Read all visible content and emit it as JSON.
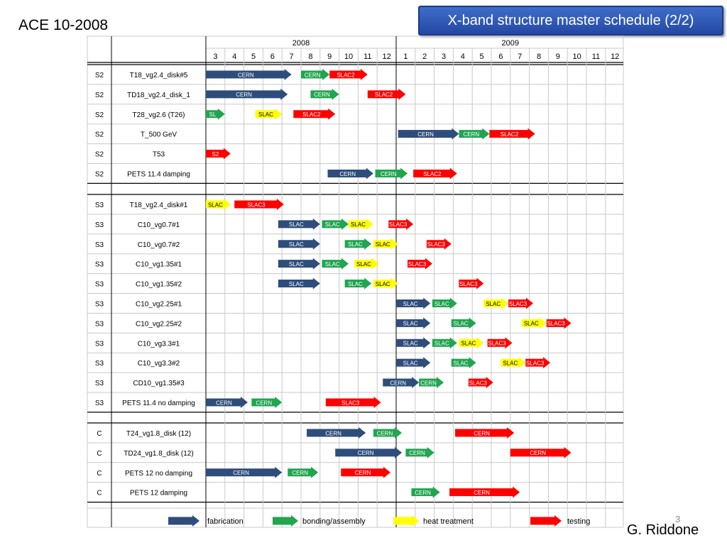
{
  "header": {
    "event": "ACE 10-2008",
    "title": "X-band structure master schedule (2/2)",
    "author": "G. Riddone",
    "page_number": "3"
  },
  "colors": {
    "fabrication": "#2e4d7b",
    "bonding": "#21a550",
    "heat": "#ffff00",
    "testing": "#ff0000"
  },
  "years": [
    {
      "label": "2008",
      "months": [
        "3",
        "4",
        "5",
        "6",
        "7",
        "8",
        "9",
        "10",
        "11",
        "12"
      ]
    },
    {
      "label": "2009",
      "months": [
        "1",
        "2",
        "3",
        "4",
        "5",
        "6",
        "7",
        "8",
        "9",
        "10",
        "11",
        "12"
      ]
    }
  ],
  "rows": [
    {
      "group": "S2",
      "name": "T18_vg2.4_disk#5",
      "bars": [
        {
          "type": "fabrication",
          "label": "CERN",
          "start": 0,
          "end": 4.5
        },
        {
          "type": "bonding",
          "label": "CERN",
          "start": 5,
          "end": 6.5
        },
        {
          "type": "testing",
          "label": "SLAC2",
          "start": 6.5,
          "end": 8.5
        }
      ]
    },
    {
      "group": "S2",
      "name": "TD18_vg2.4_disk_1",
      "bars": [
        {
          "type": "fabrication",
          "label": "CERN",
          "start": 0,
          "end": 4.3
        },
        {
          "type": "bonding",
          "label": "CERN",
          "start": 5.5,
          "end": 7
        },
        {
          "type": "testing",
          "label": "SLAC2",
          "start": 8.5,
          "end": 10.5
        }
      ]
    },
    {
      "group": "S2",
      "name": "T28_vg2.6 (T26)",
      "bars": [
        {
          "type": "bonding",
          "label": "SL",
          "start": 0,
          "end": 1
        },
        {
          "type": "heat",
          "label": "SLAC",
          "start": 2.6,
          "end": 4
        },
        {
          "type": "testing",
          "label": "SLAC2",
          "start": 4.6,
          "end": 6.8
        }
      ]
    },
    {
      "group": "S2",
      "name": "T_500 GeV",
      "bars": [
        {
          "type": "fabrication",
          "label": "CERN",
          "start": 10.1,
          "end": 13.3
        },
        {
          "type": "bonding",
          "label": "CERN",
          "start": 13.3,
          "end": 14.9
        },
        {
          "type": "testing",
          "label": "SLAC2",
          "start": 14.9,
          "end": 17.3
        }
      ]
    },
    {
      "group": "S2",
      "name": "T53",
      "bars": [
        {
          "type": "testing",
          "label": "S2",
          "start": 0,
          "end": 1.3
        }
      ]
    },
    {
      "group": "S2",
      "name": "PETS 11.4 damping",
      "bars": [
        {
          "type": "fabrication",
          "label": "CERN",
          "start": 6.4,
          "end": 8.8
        },
        {
          "type": "bonding",
          "label": "CERN",
          "start": 8.9,
          "end": 10.6
        },
        {
          "type": "testing",
          "label": "SLAC2",
          "start": 10.9,
          "end": 13.2
        }
      ]
    },
    {
      "group": "S3",
      "name": "T18_vg2.4_disk#1",
      "bars": [
        {
          "type": "heat",
          "label": "SLAC",
          "start": 0,
          "end": 1.3
        },
        {
          "type": "testing",
          "label": "SLAC3",
          "start": 1.5,
          "end": 4.1
        }
      ]
    },
    {
      "group": "S3",
      "name": "C10_vg0.7#1",
      "bars": [
        {
          "type": "fabrication",
          "label": "SLAC",
          "start": 3.8,
          "end": 6
        },
        {
          "type": "bonding",
          "label": "SLAC",
          "start": 6.1,
          "end": 7.5
        },
        {
          "type": "heat",
          "label": "SLAC",
          "start": 7.5,
          "end": 8.8
        },
        {
          "type": "testing",
          "label": "SLAC3",
          "start": 9.6,
          "end": 10.9
        }
      ]
    },
    {
      "group": "S3",
      "name": "C10_vg0.7#2",
      "bars": [
        {
          "type": "fabrication",
          "label": "SLAC",
          "start": 3.8,
          "end": 6
        },
        {
          "type": "bonding",
          "label": "SLAC",
          "start": 7.3,
          "end": 8.7
        },
        {
          "type": "heat",
          "label": "SLAC",
          "start": 8.8,
          "end": 10.1
        },
        {
          "type": "testing",
          "label": "SLAC3",
          "start": 11.6,
          "end": 12.9
        }
      ]
    },
    {
      "group": "S3",
      "name": "C10_vg1.35#1",
      "bars": [
        {
          "type": "fabrication",
          "label": "SLAC",
          "start": 3.8,
          "end": 6
        },
        {
          "type": "bonding",
          "label": "SLAC",
          "start": 6.1,
          "end": 7.5
        },
        {
          "type": "heat",
          "label": "SLAC",
          "start": 7.8,
          "end": 9.1
        },
        {
          "type": "testing",
          "label": "SLAC3",
          "start": 10.6,
          "end": 11.9
        }
      ]
    },
    {
      "group": "S3",
      "name": "C10_vg1.35#2",
      "bars": [
        {
          "type": "fabrication",
          "label": "SLAC",
          "start": 3.8,
          "end": 6
        },
        {
          "type": "bonding",
          "label": "SLAC",
          "start": 7.3,
          "end": 8.7
        },
        {
          "type": "heat",
          "label": "SLAC",
          "start": 8.8,
          "end": 10.1
        },
        {
          "type": "testing",
          "label": "SLAC3",
          "start": 13.3,
          "end": 14.6
        }
      ]
    },
    {
      "group": "S3",
      "name": "C10_vg2.25#1",
      "bars": [
        {
          "type": "fabrication",
          "label": "SLAC",
          "start": 10,
          "end": 11.8
        },
        {
          "type": "bonding",
          "label": "SLAC",
          "start": 11.9,
          "end": 13.2
        },
        {
          "type": "heat",
          "label": "SLAC",
          "start": 14.6,
          "end": 15.9
        },
        {
          "type": "testing",
          "label": "SLAC3",
          "start": 15.9,
          "end": 17.2
        }
      ]
    },
    {
      "group": "S3",
      "name": "C10_vg2.25#2",
      "bars": [
        {
          "type": "fabrication",
          "label": "SLAC",
          "start": 10,
          "end": 11.8
        },
        {
          "type": "bonding",
          "label": "SLAC",
          "start": 12.9,
          "end": 14.2
        },
        {
          "type": "heat",
          "label": "SLAC",
          "start": 16.6,
          "end": 17.9
        },
        {
          "type": "testing",
          "label": "SLAC3",
          "start": 17.9,
          "end": 19.2
        }
      ]
    },
    {
      "group": "S3",
      "name": "C10_vg3.3#1",
      "bars": [
        {
          "type": "fabrication",
          "label": "SLAC",
          "start": 10,
          "end": 11.8
        },
        {
          "type": "bonding",
          "label": "SLAC",
          "start": 11.9,
          "end": 13.2
        },
        {
          "type": "heat",
          "label": "SLAC",
          "start": 13.3,
          "end": 14.6
        },
        {
          "type": "testing",
          "label": "SLAC3",
          "start": 14.8,
          "end": 16.1
        }
      ]
    },
    {
      "group": "S3",
      "name": "C10_vg3.3#2",
      "bars": [
        {
          "type": "fabrication",
          "label": "SLAC",
          "start": 10,
          "end": 11.8
        },
        {
          "type": "bonding",
          "label": "SLAC",
          "start": 12.9,
          "end": 14.2
        },
        {
          "type": "heat",
          "label": "SLAC",
          "start": 15.5,
          "end": 16.8
        },
        {
          "type": "testing",
          "label": "SLAC3",
          "start": 16.8,
          "end": 18.1
        }
      ]
    },
    {
      "group": "S3",
      "name": "CD10_vg1.35#3",
      "bars": [
        {
          "type": "fabrication",
          "label": "CERN",
          "start": 9.3,
          "end": 11.2
        },
        {
          "type": "bonding",
          "label": "CERN",
          "start": 11.2,
          "end": 12.5
        },
        {
          "type": "testing",
          "label": "SLAC3",
          "start": 13.8,
          "end": 15.1
        }
      ]
    },
    {
      "group": "S3",
      "name": "PETS 11.4 no damping",
      "bars": [
        {
          "type": "fabrication",
          "label": "CERN",
          "start": 0,
          "end": 2.2
        },
        {
          "type": "bonding",
          "label": "CERN",
          "start": 2.4,
          "end": 4
        },
        {
          "type": "testing",
          "label": "SLAC3",
          "start": 6.3,
          "end": 9.2
        }
      ]
    },
    {
      "group": "C",
      "name": "T24_vg1.8_disk (12)",
      "bars": [
        {
          "type": "fabrication",
          "label": "CERN",
          "start": 5.3,
          "end": 8.4
        },
        {
          "type": "bonding",
          "label": "CERN",
          "start": 8.8,
          "end": 10.3
        },
        {
          "type": "testing",
          "label": "CERN",
          "start": 13.1,
          "end": 16.2
        }
      ]
    },
    {
      "group": "C",
      "name": "TD24_vg1.8_disk (12)",
      "bars": [
        {
          "type": "fabrication",
          "label": "CERN",
          "start": 6.8,
          "end": 10.3
        },
        {
          "type": "bonding",
          "label": "CERN",
          "start": 10.5,
          "end": 12
        },
        {
          "type": "testing",
          "label": "CERN",
          "start": 16,
          "end": 19.2
        }
      ]
    },
    {
      "group": "C",
      "name": "PETS 12 no damping",
      "bars": [
        {
          "type": "fabrication",
          "label": "CERN",
          "start": 0,
          "end": 4
        },
        {
          "type": "bonding",
          "label": "CERN",
          "start": 4.3,
          "end": 5.9
        },
        {
          "type": "testing",
          "label": "CERN",
          "start": 7.1,
          "end": 9.7
        }
      ]
    },
    {
      "group": "C",
      "name": "PETS 12 damping",
      "bars": [
        {
          "type": "bonding",
          "label": "CERN",
          "start": 10.8,
          "end": 12.3
        },
        {
          "type": "testing",
          "label": "CERN",
          "start": 12.8,
          "end": 16.5
        }
      ]
    }
  ],
  "legend": [
    {
      "type": "fabrication",
      "label": "fabrication"
    },
    {
      "type": "bonding",
      "label": "bonding/assembly"
    },
    {
      "type": "heat",
      "label": "heat treatment"
    },
    {
      "type": "testing",
      "label": "testing"
    }
  ]
}
